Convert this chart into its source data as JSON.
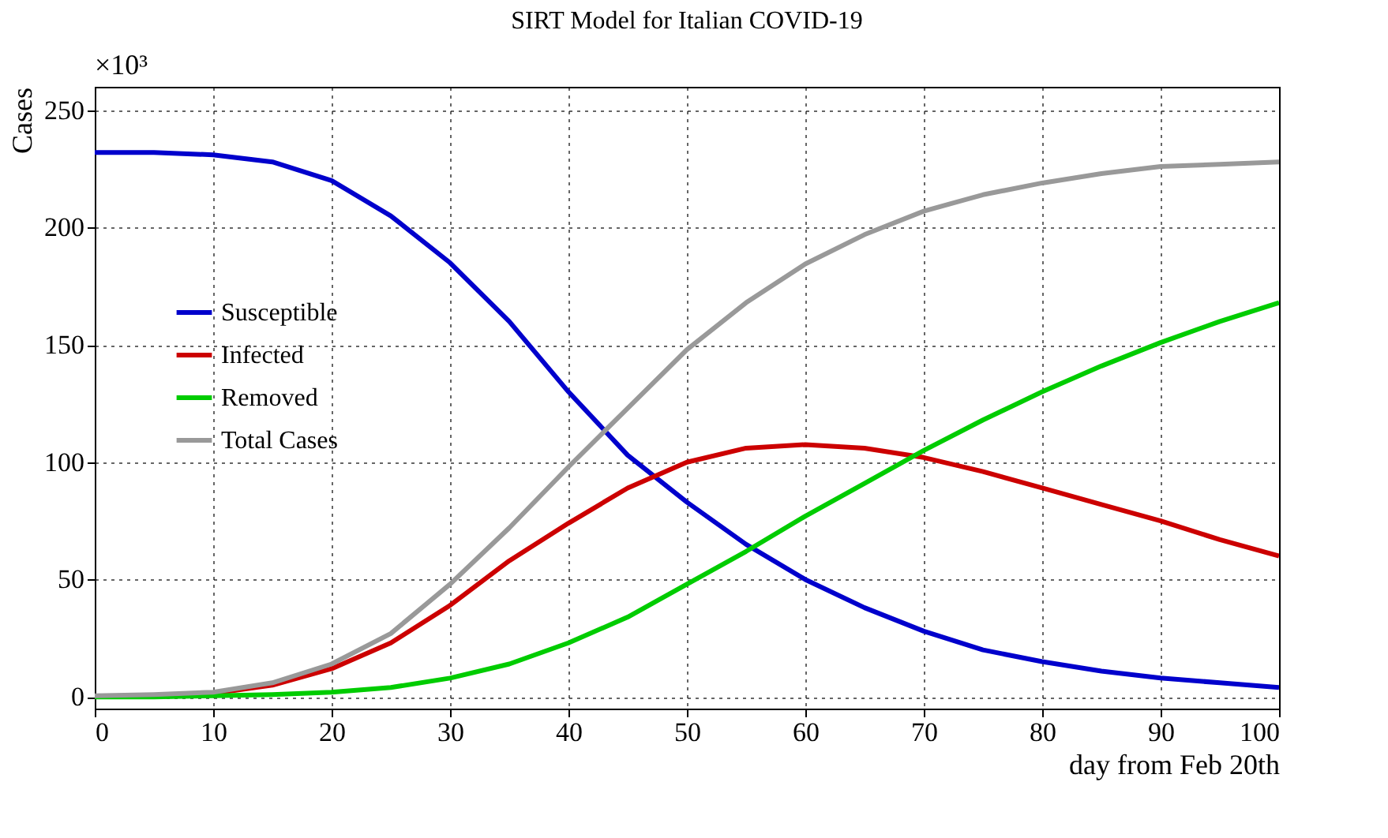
{
  "chart_data": {
    "type": "line",
    "title": "SIRT Model for Italian COVID-19",
    "xlabel": "day from Feb 20th",
    "ylabel": "Cases",
    "annotations": [
      "×10³"
    ],
    "x": [
      0,
      5,
      10,
      15,
      20,
      25,
      30,
      35,
      40,
      45,
      50,
      55,
      60,
      65,
      70,
      75,
      80,
      85,
      90,
      95,
      100
    ],
    "series": [
      {
        "name": "Susceptible",
        "color": "#0000cc",
        "values": [
          232,
          232,
          231,
          228,
          220,
          205,
          185,
          160,
          130,
          103,
          83,
          65,
          50,
          38,
          28,
          20,
          15,
          11,
          8,
          6,
          4
        ]
      },
      {
        "name": "Infected",
        "color": "#cc0000",
        "values": [
          null,
          null,
          1.5,
          5,
          12,
          23,
          39,
          58,
          74,
          89,
          100,
          106,
          107.5,
          106,
          102,
          96,
          89,
          82,
          75,
          67,
          60
        ]
      },
      {
        "name": "Removed",
        "color": "#00cc00",
        "values": [
          0,
          0,
          0.5,
          1,
          2,
          4,
          8,
          14,
          23,
          34,
          48,
          62,
          77,
          91,
          105,
          118,
          130,
          141,
          151,
          160,
          168
        ]
      },
      {
        "name": "Total Cases",
        "color": "#999999",
        "values": [
          0.5,
          1,
          2,
          6,
          14,
          27,
          48,
          72,
          98,
          123,
          148,
          168,
          184.5,
          197,
          207,
          214,
          219,
          223,
          226,
          227,
          228
        ]
      }
    ],
    "xlim": [
      0,
      100
    ],
    "xticks": [
      0,
      10,
      20,
      30,
      40,
      50,
      60,
      70,
      80,
      90,
      100
    ],
    "ylim": [
      -5,
      260
    ],
    "yticks": [
      0,
      50,
      100,
      150,
      200,
      250
    ],
    "grid": true,
    "legend": "left",
    "marker": "none",
    "line_style": "solid"
  }
}
